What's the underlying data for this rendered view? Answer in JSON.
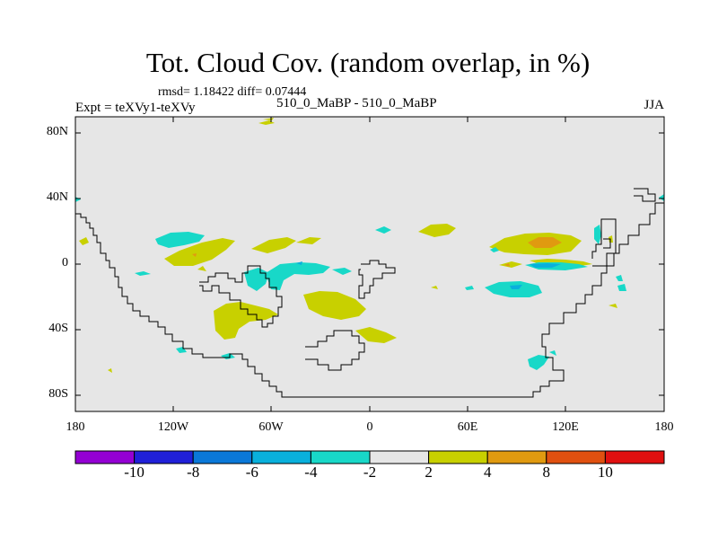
{
  "title": "Tot. Cloud Cov. (random overlap, in %)",
  "stats": "rmsd= 1.18422  diff= 0.07444",
  "experiment": "Expt = teXVy1-teXVy",
  "case_name": "510_0_MaBP - 510_0_MaBP",
  "season": "JJA",
  "colors": {
    "background": "#e6e6e6",
    "coast": "#000000",
    "bin_neg10_less": "#9400d3",
    "bin_neg10_neg8": "#2020d8",
    "bin_neg8_neg6": "#0a78d8",
    "bin_neg6_neg4": "#09b0dc",
    "bin_neg4_neg2": "#18d8c8",
    "bin_neg2_2": "#e6e6e6",
    "bin_2_4": "#c8d000",
    "bin_4_8": "#e09a10",
    "bin_8_10": "#e05010",
    "bin_10_more": "#e01010"
  },
  "axes": {
    "lat_ticks": [
      "80N",
      "40N",
      "0",
      "40S",
      "80S"
    ],
    "lon_ticks": [
      "180",
      "120W",
      "60W",
      "0",
      "60E",
      "120E",
      "180"
    ]
  },
  "colorbar": {
    "labels": [
      "-10",
      "-8",
      "-6",
      "-4",
      "-2",
      "2",
      "4",
      "8",
      "10"
    ]
  }
}
